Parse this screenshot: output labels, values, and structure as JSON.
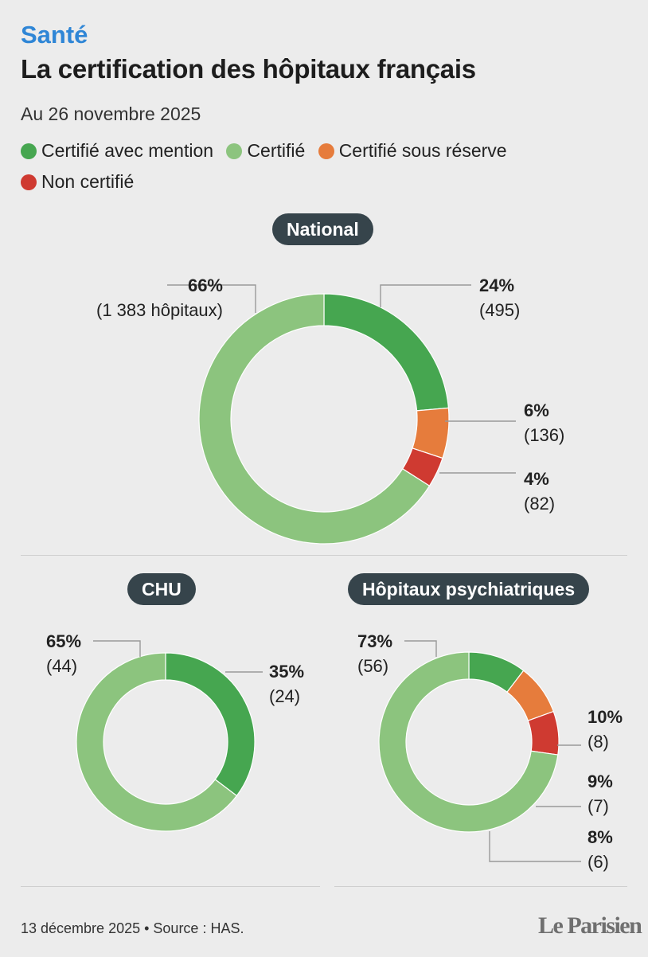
{
  "header": {
    "kicker": "Santé",
    "title": "La certification des hôpitaux français",
    "date": "Au 26 novembre 2025"
  },
  "legend": [
    {
      "label": "Certifié avec mention",
      "color": "#46a650"
    },
    {
      "label": "Certifié",
      "color": "#8cc47e"
    },
    {
      "label": "Certifié sous réserve",
      "color": "#e67c3c"
    },
    {
      "label": "Non certifié",
      "color": "#cf3a31"
    }
  ],
  "chart_data": [
    {
      "type": "pie",
      "title": "National",
      "categories": [
        "Certifié avec mention",
        "Certifié sous réserve",
        "Non certifié",
        "Certifié"
      ],
      "values": [
        495,
        136,
        82,
        1383
      ],
      "percent_labels": [
        "24%",
        "6%",
        "4%",
        "66%"
      ],
      "count_labels": [
        "(495)",
        "(136)",
        "(82)",
        "(1 383 hôpitaux)"
      ]
    },
    {
      "type": "pie",
      "title": "CHU",
      "categories": [
        "Certifié avec mention",
        "Certifié"
      ],
      "values": [
        24,
        44
      ],
      "percent_labels": [
        "35%",
        "65%"
      ],
      "count_labels": [
        "(24)",
        "(44)"
      ]
    },
    {
      "type": "pie",
      "title": "Hôpitaux psychiatriques",
      "categories": [
        "Certifié avec mention",
        "Certifié sous réserve",
        "Non certifié",
        "Certifié"
      ],
      "values": [
        8,
        7,
        6,
        56
      ],
      "percent_labels": [
        "10%",
        "9%",
        "8%",
        "73%"
      ],
      "count_labels": [
        "(8)",
        "(7)",
        "(6)",
        "(56)"
      ]
    }
  ],
  "footer": {
    "source": "13 décembre 2025 • Source : HAS.",
    "logo": "Le Parisien"
  }
}
